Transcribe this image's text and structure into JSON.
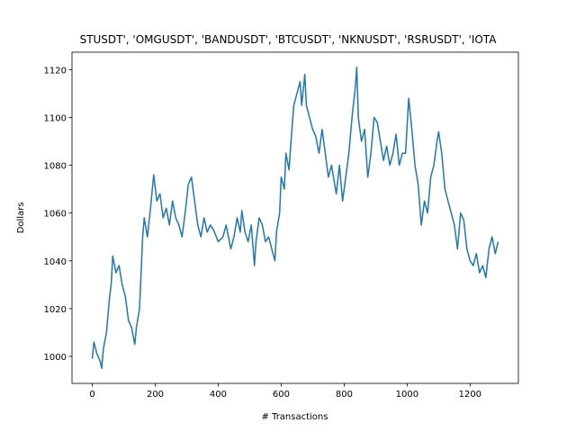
{
  "chart_data": {
    "type": "line",
    "title": "STUSDT', 'OMGUSDT', 'BANDUSDT', 'BTCUSDT', 'NKNUSDT', 'RSRUSDT', 'IOTA",
    "x_label": "# Transactions",
    "y_label": "Dollars",
    "color": "#1f77b4",
    "xlim": [
      -64.45,
      1353.45
    ],
    "ylim": [
      988.7,
      1127.3
    ],
    "xticks": [
      0,
      200,
      400,
      600,
      800,
      1000,
      1200
    ],
    "yticks": [
      1000,
      1020,
      1040,
      1060,
      1080,
      1100,
      1120
    ],
    "x": [
      0,
      5,
      15,
      25,
      30,
      35,
      45,
      55,
      60,
      65,
      75,
      85,
      95,
      105,
      115,
      125,
      135,
      140,
      150,
      160,
      165,
      175,
      185,
      195,
      205,
      215,
      225,
      235,
      245,
      255,
      265,
      275,
      285,
      295,
      305,
      315,
      325,
      335,
      345,
      355,
      365,
      375,
      385,
      400,
      415,
      425,
      440,
      450,
      460,
      470,
      475,
      485,
      495,
      505,
      515,
      520,
      530,
      540,
      550,
      560,
      570,
      580,
      585,
      595,
      600,
      610,
      615,
      625,
      630,
      640,
      650,
      660,
      665,
      675,
      680,
      690,
      700,
      710,
      720,
      730,
      740,
      750,
      760,
      775,
      785,
      795,
      805,
      815,
      825,
      835,
      840,
      845,
      855,
      865,
      875,
      885,
      895,
      905,
      915,
      925,
      935,
      945,
      955,
      965,
      975,
      985,
      995,
      1005,
      1015,
      1025,
      1035,
      1045,
      1055,
      1065,
      1075,
      1085,
      1095,
      1100,
      1110,
      1120,
      1130,
      1140,
      1150,
      1160,
      1170,
      1180,
      1190,
      1200,
      1210,
      1220,
      1230,
      1240,
      1250,
      1260,
      1270,
      1280,
      1289
    ],
    "values": [
      999,
      1006,
      1001,
      998,
      995,
      1003,
      1010,
      1025,
      1030,
      1042,
      1035,
      1038,
      1030,
      1025,
      1015,
      1012,
      1005,
      1012,
      1020,
      1050,
      1058,
      1050,
      1062,
      1076,
      1065,
      1068,
      1058,
      1062,
      1055,
      1065,
      1058,
      1055,
      1050,
      1060,
      1072,
      1075,
      1065,
      1055,
      1050,
      1058,
      1052,
      1055,
      1053,
      1048,
      1050,
      1055,
      1045,
      1050,
      1058,
      1052,
      1061,
      1052,
      1048,
      1055,
      1038,
      1048,
      1058,
      1055,
      1048,
      1050,
      1045,
      1040,
      1052,
      1060,
      1075,
      1070,
      1085,
      1078,
      1088,
      1105,
      1110,
      1115,
      1105,
      1118,
      1105,
      1100,
      1095,
      1092,
      1085,
      1095,
      1085,
      1075,
      1080,
      1068,
      1080,
      1065,
      1075,
      1085,
      1100,
      1112,
      1121,
      1100,
      1090,
      1095,
      1075,
      1085,
      1100,
      1098,
      1090,
      1082,
      1088,
      1080,
      1085,
      1093,
      1080,
      1085,
      1085,
      1108,
      1095,
      1080,
      1072,
      1055,
      1065,
      1060,
      1075,
      1080,
      1090,
      1094,
      1085,
      1070,
      1065,
      1060,
      1055,
      1045,
      1060,
      1057,
      1045,
      1040,
      1038,
      1043,
      1035,
      1038,
      1033,
      1045,
      1050,
      1043,
      1048
    ]
  }
}
